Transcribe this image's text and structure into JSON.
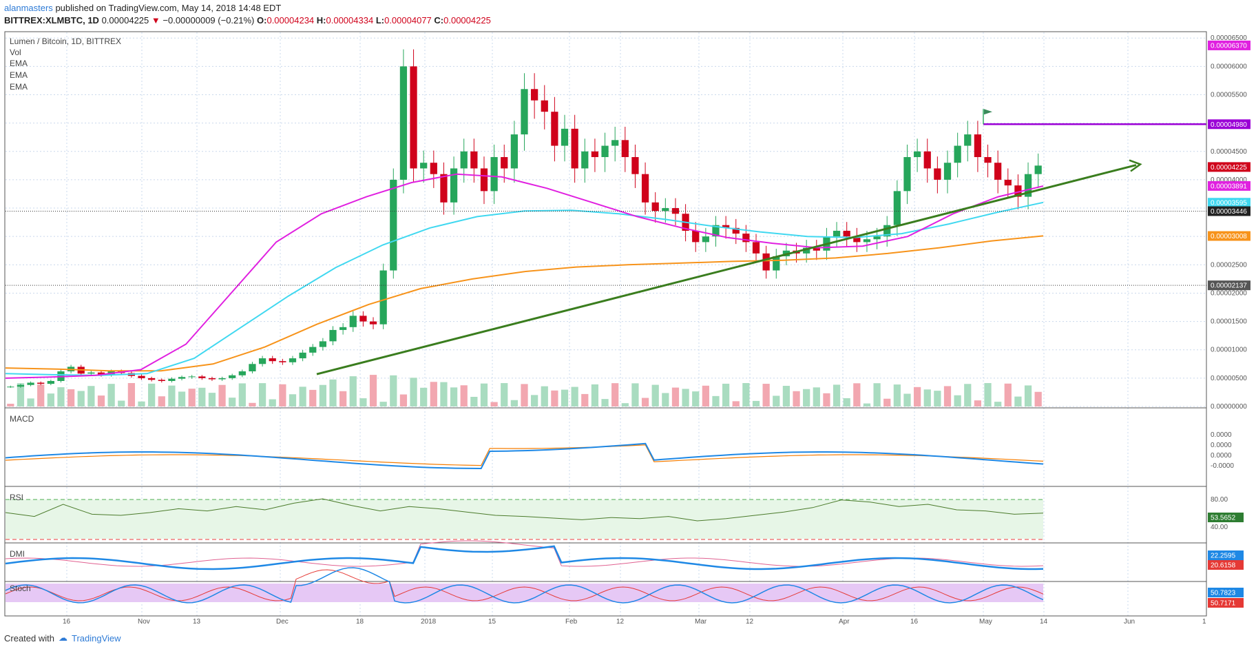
{
  "header": {
    "user": "alanmasters",
    "published": "published on TradingView.com, May 14, 2018 14:48 EDT",
    "symbol": "BITTREX:XLMBTC, 1D",
    "price": "0.00004225",
    "change": "−0.00000009 (−0.21%)",
    "o_label": "O:",
    "o": "0.00004234",
    "h_label": "H:",
    "h": "0.00004334",
    "l_label": "L:",
    "l": "0.00004077",
    "c_label": "C:",
    "c": "0.00004225"
  },
  "footer": {
    "created": "Created with",
    "brand": "TradingView"
  },
  "panes": {
    "main_title": "Lumen / Bitcoin, 1D, BITTREX",
    "indicators": [
      "Vol",
      "EMA",
      "EMA",
      "EMA"
    ],
    "macd": "MACD",
    "rsi": "RSI",
    "dmi": "DMI",
    "stoch": "Stoch"
  },
  "colors": {
    "up": "#26a65b",
    "down": "#d0021b",
    "ema_short": "#e020e0",
    "ema_mid": "#40d8f0",
    "ema_long": "#f7931a",
    "trendline": "#3a7d1e",
    "resistance": "#9b00d6",
    "macd": "#1e88e5",
    "signal": "#f57c00",
    "rsi": "#4a7a2a",
    "stoch_bg": "#e6c8f5"
  },
  "chart_data": {
    "type": "candlestick",
    "x_labels": [
      "16",
      "Nov",
      "13",
      "Dec",
      "18",
      "2018",
      "15",
      "Feb",
      "12",
      "Mar",
      "12",
      "Apr",
      "16",
      "May",
      "14",
      "Jun",
      "1"
    ],
    "price_axis": [
      "0.00006500",
      "0.00006000",
      "0.00005500",
      "0.00005000",
      "0.00004500",
      "0.00004000",
      "0.00003500",
      "0.00002500",
      "0.00002000",
      "0.00001500",
      "0.00001000",
      "0.00000500",
      "0.00000000"
    ],
    "ylim": [
      0,
      6.6e-05
    ],
    "tags": [
      {
        "value": 6.37e-05,
        "label": "0.00006370",
        "color": "#e020e0"
      },
      {
        "value": 4.98e-05,
        "label": "0.00004980",
        "color": "#9b00d6"
      },
      {
        "value": 4.225e-05,
        "label": "0.00004225",
        "color": "#d0021b"
      },
      {
        "value": 3.891e-05,
        "label": "0.00003891",
        "color": "#e020e0"
      },
      {
        "value": 3.595e-05,
        "label": "0.00003595",
        "color": "#40d8f0"
      },
      {
        "value": 3.446e-05,
        "label": "0.00003446",
        "color": "#222222"
      },
      {
        "value": 3.008e-05,
        "label": "0.00003008",
        "color": "#f7931a"
      },
      {
        "value": 2.137e-05,
        "label": "0.00002137",
        "color": "#555555"
      }
    ],
    "horizontal_lines": [
      3.446e-05,
      2.137e-05
    ],
    "resistance": 4.98e-05,
    "trend_start": [
      5.7e-06,
      4.26e-05
    ],
    "closes": [
      3.5e-06,
      3.8e-06,
      4.2e-06,
      4e-06,
      4.5e-06,
      6.2e-06,
      7e-06,
      5.8e-06,
      6e-06,
      5.6e-06,
      6.2e-06,
      5.9e-06,
      5.4e-06,
      5e-06,
      4.7e-06,
      4.5e-06,
      4.9e-06,
      5.2e-06,
      5.3e-06,
      5e-06,
      4.8e-06,
      5e-06,
      5.5e-06,
      6.2e-06,
      7.5e-06,
      8.5e-06,
      8e-06,
      7.8e-06,
      8.5e-06,
      9.5e-06,
      1.05e-05,
      1.15e-05,
      1.35e-05,
      1.4e-05,
      1.6e-05,
      1.5e-05,
      1.45e-05,
      2.4e-05,
      4e-05,
      6e-05,
      4.2e-05,
      4.3e-05,
      4.1e-05,
      3.6e-05,
      4.2e-05,
      4.5e-05,
      4.2e-05,
      3.8e-05,
      4.4e-05,
      4.2e-05,
      4.8e-05,
      5.6e-05,
      5.4e-05,
      5.2e-05,
      4.6e-05,
      4.9e-05,
      4.2e-05,
      4.5e-05,
      4.4e-05,
      4.6e-05,
      4.7e-05,
      4.4e-05,
      4.1e-05,
      3.6e-05,
      3.45e-05,
      3.5e-05,
      3.4e-05,
      3.1e-05,
      2.9e-05,
      3e-05,
      3.2e-05,
      3.15e-05,
      3.05e-05,
      2.9e-05,
      2.7e-05,
      2.4e-05,
      2.65e-05,
      2.75e-05,
      2.7e-05,
      2.8e-05,
      2.75e-05,
      3e-05,
      3.1e-05,
      3e-05,
      2.9e-05,
      2.95e-05,
      3e-05,
      3.2e-05,
      3.8e-05,
      4.4e-05,
      4.5e-05,
      4.2e-05,
      4e-05,
      4.3e-05,
      4.6e-05,
      4.8e-05,
      4.4e-05,
      4.3e-05,
      4e-05,
      3.9e-05,
      3.7e-05,
      4.1e-05,
      4.25e-05
    ],
    "ema_short": [
      5e-06,
      5.2e-06,
      5.5e-06,
      6.5e-06,
      1.1e-05,
      2e-05,
      2.9e-05,
      3.4e-05,
      3.7e-05,
      3.95e-05,
      4.1e-05,
      4.05e-05,
      3.85e-05,
      3.6e-05,
      3.35e-05,
      3.15e-05,
      2.98e-05,
      2.88e-05,
      2.8e-05,
      2.83e-05,
      3e-05,
      3.4e-05,
      3.7e-05,
      3.89e-05
    ],
    "ema_mid": [
      5.8e-06,
      5.6e-06,
      5.5e-06,
      5.8e-06,
      8.5e-06,
      1.4e-05,
      1.95e-05,
      2.45e-05,
      2.85e-05,
      3.15e-05,
      3.35e-05,
      3.45e-05,
      3.46e-05,
      3.4e-05,
      3.3e-05,
      3.18e-05,
      3.08e-05,
      3e-05,
      2.98e-05,
      3.05e-05,
      3.22e-05,
      3.42e-05,
      3.6e-05
    ],
    "ema_long": [
      6.8e-06,
      6.6e-06,
      6.3e-06,
      6.3e-06,
      7.5e-06,
      1.05e-05,
      1.45e-05,
      1.8e-05,
      2.08e-05,
      2.25e-05,
      2.38e-05,
      2.46e-05,
      2.5e-05,
      2.53e-05,
      2.56e-05,
      2.58e-05,
      2.62e-05,
      2.7e-05,
      2.8e-05,
      2.92e-05,
      3.01e-05
    ],
    "macd_labels": [
      "0.0000",
      "0.0000",
      "0.0000",
      "-0.0000"
    ],
    "rsi_axis": [
      "80.00",
      "40.00"
    ],
    "rsi_value": "53.5652",
    "rsi": [
      55,
      48,
      70,
      52,
      50,
      55,
      62,
      58,
      66,
      60,
      72,
      80,
      68,
      58,
      66,
      62,
      56,
      50,
      48,
      45,
      42,
      46,
      44,
      48,
      40,
      44,
      50,
      56,
      64,
      78,
      74,
      66,
      70,
      60,
      58,
      52,
      54
    ],
    "dmi_values": [
      "22.2595",
      "20.6158"
    ],
    "stoch_values": [
      "50.7823",
      "50.7171"
    ]
  }
}
